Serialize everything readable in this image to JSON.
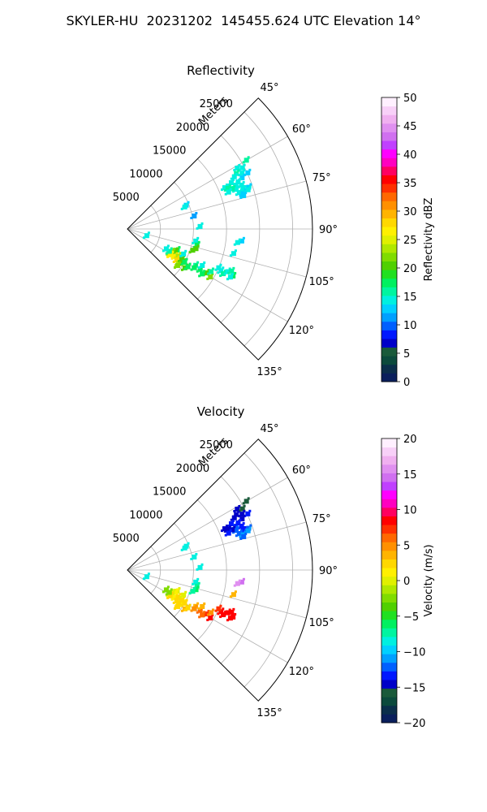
{
  "figure": {
    "title": "SKYLER-HU  20231202  145455.624 UTC Elevation 14°"
  },
  "chart_data": [
    {
      "type": "scatter",
      "subtype": "polar-ppi-sector",
      "title": "Reflectivity",
      "range_label": "Meters",
      "theta_range_deg": [
        45,
        135
      ],
      "r_range_m": [
        0,
        28000
      ],
      "radial_ticks": [
        5000,
        10000,
        15000,
        20000,
        25000
      ],
      "radial_tick_labels": [
        "5000",
        "10000",
        "15000",
        "20000",
        "25000"
      ],
      "angle_ticks": [
        45,
        60,
        75,
        90,
        105,
        120,
        135
      ],
      "angle_tick_labels": [
        "45°",
        "60°",
        "75°",
        "90°",
        "105°",
        "120°",
        "135°"
      ],
      "grid": true,
      "colorbar": {
        "label": "Reflectivity dBZ",
        "range": [
          0,
          50
        ],
        "ticks": [
          0,
          5,
          10,
          15,
          20,
          25,
          30,
          35,
          40,
          45,
          50
        ],
        "tick_labels": [
          "0",
          "5",
          "10",
          "15",
          "20",
          "25",
          "30",
          "35",
          "40",
          "45",
          "50"
        ],
        "colors": [
          "#0a1f5c",
          "#0b2e4a",
          "#0c4a3c",
          "#1a5a3a",
          "#0000c8",
          "#0018ff",
          "#0060ff",
          "#00a0ff",
          "#00d0ff",
          "#00f0e0",
          "#00f5a0",
          "#00f060",
          "#20e020",
          "#50d000",
          "#80dc00",
          "#b0e800",
          "#e0f000",
          "#fff000",
          "#ffd800",
          "#ffb400",
          "#ff9000",
          "#ff6800",
          "#ff3000",
          "#ff0000",
          "#ff0060",
          "#ff00c0",
          "#ff00ff",
          "#c040ff",
          "#d070f0",
          "#e090f0",
          "#f0b0f0",
          "#f8d0f8",
          "#fff0ff"
        ]
      },
      "points": [
        {
          "theta": 61,
          "r": 19000,
          "v": 15
        },
        {
          "theta": 62,
          "r": 19700,
          "v": 14
        },
        {
          "theta": 63,
          "r": 18500,
          "v": 16
        },
        {
          "theta": 64,
          "r": 19300,
          "v": 15
        },
        {
          "theta": 65,
          "r": 20100,
          "v": 13
        },
        {
          "theta": 60,
          "r": 20800,
          "v": 16
        },
        {
          "theta": 64,
          "r": 18000,
          "v": 14
        },
        {
          "theta": 66,
          "r": 17200,
          "v": 15
        },
        {
          "theta": 66,
          "r": 19000,
          "v": 13
        },
        {
          "theta": 68,
          "r": 17700,
          "v": 15
        },
        {
          "theta": 69,
          "r": 18500,
          "v": 14
        },
        {
          "theta": 70,
          "r": 17500,
          "v": 15
        },
        {
          "theta": 71,
          "r": 18500,
          "v": 14
        },
        {
          "theta": 72,
          "r": 17800,
          "v": 15
        },
        {
          "theta": 73,
          "r": 18300,
          "v": 13
        },
        {
          "theta": 69,
          "r": 17000,
          "v": 16
        },
        {
          "theta": 67,
          "r": 18200,
          "v": 14
        },
        {
          "theta": 71,
          "r": 19400,
          "v": 13
        },
        {
          "theta": 72,
          "r": 19200,
          "v": 14
        },
        {
          "theta": 67,
          "r": 16000,
          "v": 15
        },
        {
          "theta": 68,
          "r": 16400,
          "v": 16
        },
        {
          "theta": 70,
          "r": 16300,
          "v": 15
        },
        {
          "theta": 74,
          "r": 18300,
          "v": 13
        },
        {
          "theta": 68,
          "r": 9600,
          "v": 13
        },
        {
          "theta": 69,
          "r": 9300,
          "v": 14
        },
        {
          "theta": 79,
          "r": 10300,
          "v": 12
        },
        {
          "theta": 88,
          "r": 11000,
          "v": 15
        },
        {
          "theta": 96,
          "r": 17400,
          "v": 13
        },
        {
          "theta": 97,
          "r": 16800,
          "v": 14
        },
        {
          "theta": 100,
          "r": 10500,
          "v": 15
        },
        {
          "theta": 103,
          "r": 10800,
          "v": 18
        },
        {
          "theta": 106,
          "r": 10800,
          "v": 20
        },
        {
          "theta": 108,
          "r": 10400,
          "v": 21
        },
        {
          "theta": 103,
          "r": 16500,
          "v": 15
        },
        {
          "theta": 109,
          "r": 3100,
          "v": 14
        },
        {
          "theta": 113,
          "r": 8200,
          "v": 18
        },
        {
          "theta": 115,
          "r": 8000,
          "v": 20
        },
        {
          "theta": 117,
          "r": 7600,
          "v": 22
        },
        {
          "theta": 119,
          "r": 7300,
          "v": 24
        },
        {
          "theta": 121,
          "r": 7600,
          "v": 26
        },
        {
          "theta": 120,
          "r": 8300,
          "v": 27
        },
        {
          "theta": 118,
          "r": 8700,
          "v": 24
        },
        {
          "theta": 122,
          "r": 8800,
          "v": 28
        },
        {
          "theta": 123,
          "r": 9600,
          "v": 24
        },
        {
          "theta": 124,
          "r": 9300,
          "v": 23
        },
        {
          "theta": 121,
          "r": 9800,
          "v": 20
        },
        {
          "theta": 119,
          "r": 9400,
          "v": 21
        },
        {
          "theta": 124,
          "r": 10500,
          "v": 20
        },
        {
          "theta": 122,
          "r": 10800,
          "v": 17
        },
        {
          "theta": 120,
          "r": 10000,
          "v": 18
        },
        {
          "theta": 126,
          "r": 9400,
          "v": 22
        },
        {
          "theta": 118,
          "r": 7200,
          "v": 16
        },
        {
          "theta": 117,
          "r": 6600,
          "v": 14
        },
        {
          "theta": 114,
          "r": 9300,
          "v": 15
        },
        {
          "theta": 118,
          "r": 11700,
          "v": 16
        },
        {
          "theta": 119,
          "r": 12600,
          "v": 17
        },
        {
          "theta": 120,
          "r": 11700,
          "v": 18
        },
        {
          "theta": 116,
          "r": 12600,
          "v": 15
        },
        {
          "theta": 119,
          "r": 13700,
          "v": 20
        },
        {
          "theta": 120,
          "r": 14500,
          "v": 22
        },
        {
          "theta": 121,
          "r": 13200,
          "v": 18
        },
        {
          "theta": 117,
          "r": 14200,
          "v": 16
        },
        {
          "theta": 114,
          "r": 15500,
          "v": 14
        },
        {
          "theta": 115,
          "r": 16000,
          "v": 16
        },
        {
          "theta": 113,
          "r": 16500,
          "v": 15
        },
        {
          "theta": 114,
          "r": 17500,
          "v": 17
        },
        {
          "theta": 112,
          "r": 17000,
          "v": 16
        },
        {
          "theta": 113,
          "r": 15000,
          "v": 14
        },
        {
          "theta": 115,
          "r": 17200,
          "v": 15
        }
      ]
    },
    {
      "type": "scatter",
      "subtype": "polar-ppi-sector",
      "title": "Velocity",
      "range_label": "Meters",
      "theta_range_deg": [
        45,
        135
      ],
      "r_range_m": [
        0,
        28000
      ],
      "radial_ticks": [
        5000,
        10000,
        15000,
        20000,
        25000
      ],
      "radial_tick_labels": [
        "5000",
        "10000",
        "15000",
        "20000",
        "25000"
      ],
      "angle_ticks": [
        45,
        60,
        75,
        90,
        105,
        120,
        135
      ],
      "angle_tick_labels": [
        "45°",
        "60°",
        "75°",
        "90°",
        "105°",
        "120°",
        "135°"
      ],
      "grid": true,
      "colorbar": {
        "label": "Velocity (m/s)",
        "range": [
          -20,
          20
        ],
        "ticks": [
          -20,
          -15,
          -10,
          -5,
          0,
          5,
          10,
          15,
          20
        ],
        "tick_labels": [
          "−20",
          "−15",
          "−10",
          "−5",
          "0",
          "5",
          "10",
          "15",
          "20"
        ],
        "colors": [
          "#0a1f5c",
          "#0b2e4a",
          "#0c4a3c",
          "#1a5a3a",
          "#0000c8",
          "#0018ff",
          "#0060ff",
          "#00a0ff",
          "#00d0ff",
          "#00f0e0",
          "#00f5a0",
          "#00f060",
          "#20e020",
          "#50d000",
          "#80dc00",
          "#b0e800",
          "#e0f000",
          "#fff000",
          "#ffd800",
          "#ffb400",
          "#ff9000",
          "#ff6800",
          "#ff3000",
          "#ff0000",
          "#ff0060",
          "#ff00c0",
          "#ff00ff",
          "#c040ff",
          "#d070f0",
          "#e090f0",
          "#f0b0f0",
          "#f8d0f8",
          "#fff0ff"
        ]
      },
      "points": [
        {
          "theta": 61,
          "r": 19000,
          "v": -15
        },
        {
          "theta": 62,
          "r": 19700,
          "v": -16
        },
        {
          "theta": 63,
          "r": 18500,
          "v": -14
        },
        {
          "theta": 64,
          "r": 19300,
          "v": -15
        },
        {
          "theta": 65,
          "r": 20100,
          "v": -13
        },
        {
          "theta": 60,
          "r": 20800,
          "v": -16
        },
        {
          "theta": 64,
          "r": 18000,
          "v": -14
        },
        {
          "theta": 66,
          "r": 17200,
          "v": -13
        },
        {
          "theta": 66,
          "r": 19000,
          "v": -14
        },
        {
          "theta": 68,
          "r": 17700,
          "v": -12
        },
        {
          "theta": 69,
          "r": 18500,
          "v": -13
        },
        {
          "theta": 70,
          "r": 17500,
          "v": -12
        },
        {
          "theta": 71,
          "r": 18500,
          "v": -13
        },
        {
          "theta": 72,
          "r": 17800,
          "v": -12
        },
        {
          "theta": 73,
          "r": 18300,
          "v": -11
        },
        {
          "theta": 69,
          "r": 17000,
          "v": -14
        },
        {
          "theta": 67,
          "r": 18200,
          "v": -13
        },
        {
          "theta": 71,
          "r": 19400,
          "v": -12
        },
        {
          "theta": 72,
          "r": 19200,
          "v": -11
        },
        {
          "theta": 67,
          "r": 16000,
          "v": -15
        },
        {
          "theta": 68,
          "r": 16400,
          "v": -14
        },
        {
          "theta": 70,
          "r": 16300,
          "v": -13
        },
        {
          "theta": 74,
          "r": 18300,
          "v": -12
        },
        {
          "theta": 68,
          "r": 9600,
          "v": -8
        },
        {
          "theta": 69,
          "r": 9300,
          "v": -8
        },
        {
          "theta": 79,
          "r": 10300,
          "v": -8
        },
        {
          "theta": 88,
          "r": 11000,
          "v": -8
        },
        {
          "theta": 96,
          "r": 17400,
          "v": 15
        },
        {
          "theta": 97,
          "r": 16800,
          "v": 16
        },
        {
          "theta": 100,
          "r": 10500,
          "v": -8
        },
        {
          "theta": 103,
          "r": 10800,
          "v": -7
        },
        {
          "theta": 106,
          "r": 10800,
          "v": -6
        },
        {
          "theta": 108,
          "r": 10400,
          "v": -7
        },
        {
          "theta": 103,
          "r": 16500,
          "v": 4
        },
        {
          "theta": 109,
          "r": 3100,
          "v": -8
        },
        {
          "theta": 113,
          "r": 8200,
          "v": 0
        },
        {
          "theta": 115,
          "r": 8000,
          "v": 1
        },
        {
          "theta": 117,
          "r": 7600,
          "v": 0
        },
        {
          "theta": 119,
          "r": 7300,
          "v": 1
        },
        {
          "theta": 121,
          "r": 7600,
          "v": 2
        },
        {
          "theta": 120,
          "r": 8300,
          "v": 1
        },
        {
          "theta": 118,
          "r": 8700,
          "v": 2
        },
        {
          "theta": 122,
          "r": 8800,
          "v": 3
        },
        {
          "theta": 123,
          "r": 9600,
          "v": 2
        },
        {
          "theta": 124,
          "r": 9300,
          "v": 3
        },
        {
          "theta": 121,
          "r": 9800,
          "v": 1
        },
        {
          "theta": 119,
          "r": 9400,
          "v": 2
        },
        {
          "theta": 124,
          "r": 10500,
          "v": 4
        },
        {
          "theta": 122,
          "r": 10800,
          "v": 3
        },
        {
          "theta": 120,
          "r": 10000,
          "v": 2
        },
        {
          "theta": 126,
          "r": 9400,
          "v": 3
        },
        {
          "theta": 118,
          "r": 7200,
          "v": -2
        },
        {
          "theta": 117,
          "r": 6600,
          "v": -3
        },
        {
          "theta": 114,
          "r": 9300,
          "v": 0
        },
        {
          "theta": 118,
          "r": 11700,
          "v": 4
        },
        {
          "theta": 119,
          "r": 12600,
          "v": 6
        },
        {
          "theta": 120,
          "r": 11700,
          "v": 5
        },
        {
          "theta": 116,
          "r": 12600,
          "v": 4
        },
        {
          "theta": 119,
          "r": 13700,
          "v": 7
        },
        {
          "theta": 120,
          "r": 14500,
          "v": 8
        },
        {
          "theta": 121,
          "r": 13200,
          "v": 6
        },
        {
          "theta": 117,
          "r": 14200,
          "v": 5
        },
        {
          "theta": 114,
          "r": 15500,
          "v": 8
        },
        {
          "theta": 115,
          "r": 16000,
          "v": 9
        },
        {
          "theta": 113,
          "r": 16500,
          "v": 8
        },
        {
          "theta": 114,
          "r": 17500,
          "v": 9
        },
        {
          "theta": 112,
          "r": 17000,
          "v": 8
        },
        {
          "theta": 113,
          "r": 15000,
          "v": 7
        },
        {
          "theta": 115,
          "r": 17200,
          "v": 9
        }
      ]
    }
  ]
}
